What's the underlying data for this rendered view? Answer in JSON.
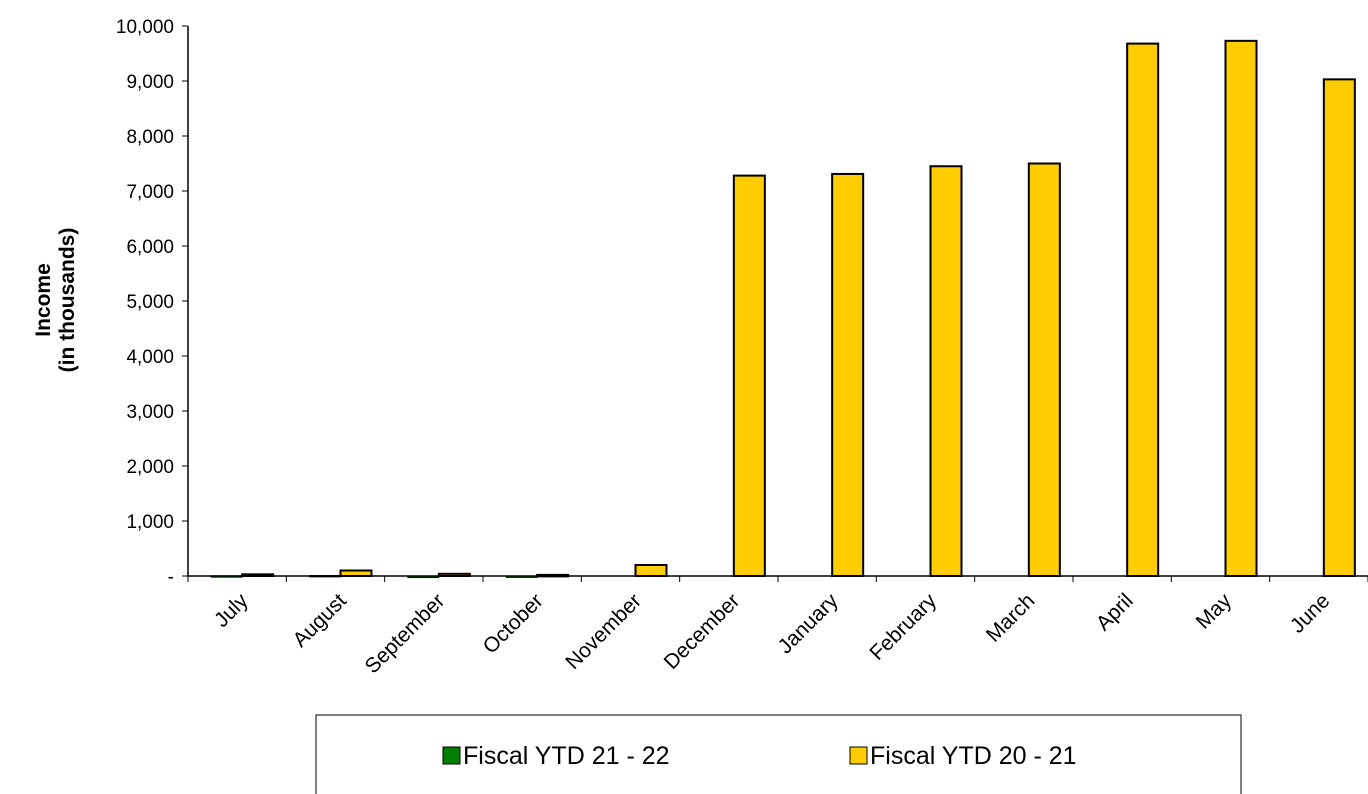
{
  "chart_data": {
    "type": "bar",
    "categories": [
      "July",
      "August",
      "September",
      "October",
      "November",
      "December",
      "January",
      "February",
      "March",
      "April",
      "May",
      "June"
    ],
    "series": [
      {
        "name": "Fiscal YTD 21 - 22",
        "color": "#008000",
        "values": [
          5,
          10,
          -30,
          -20,
          0,
          0,
          0,
          0,
          0,
          0,
          0,
          0
        ]
      },
      {
        "name": "Fiscal YTD 20 - 21",
        "color": "#FFCC00",
        "values": [
          30,
          100,
          40,
          20,
          200,
          7280,
          7310,
          7450,
          7500,
          9680,
          9730,
          9030
        ]
      }
    ],
    "ylabel": [
      "Income",
      "(in thousands)"
    ],
    "ylim": [
      0,
      10000
    ],
    "ytick_values": [
      0,
      1000,
      2000,
      3000,
      4000,
      5000,
      6000,
      7000,
      8000,
      9000,
      10000
    ],
    "ytick_labels": [
      "-",
      "1,000",
      "2,000",
      "3,000",
      "4,000",
      "5,000",
      "6,000",
      "7,000",
      "8,000",
      "9,000",
      "10,000"
    ],
    "grid": false,
    "legend_position": "bottom"
  }
}
